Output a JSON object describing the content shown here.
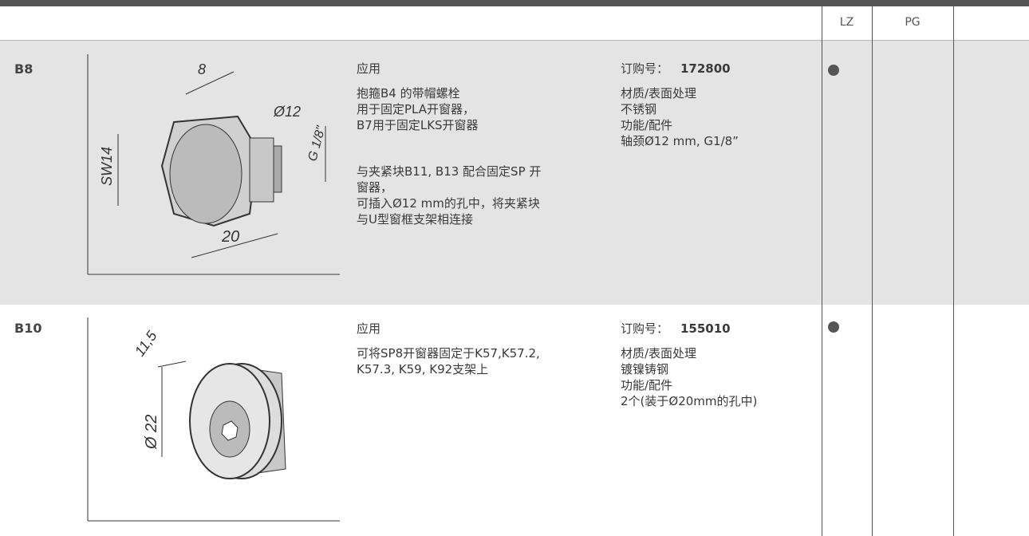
{
  "header": {
    "columns": [
      "LZ",
      "PG"
    ]
  },
  "rows": [
    {
      "code": "B8",
      "lz_available": true,
      "figure_labels": [
        "8",
        "Ø12",
        "SW14",
        "G 1/8\"",
        "20"
      ],
      "application_title": "应用",
      "application": [
        [
          "抱箍B4 的带帽螺栓",
          "用于固定PLA开窗器，",
          "B7用于固定LKS开窗器"
        ],
        [
          "与夹紧块B11, B13 配合固定SP 开",
          "窗器，",
          "可插入Ø12 mm的孔中，将夹紧块",
          "与U型窗框支架相连接"
        ]
      ],
      "order_label": "订购号：",
      "order_number": "172800",
      "material_title": "材质/表面处理",
      "material": "不锈钢",
      "function_title": "功能/配件",
      "function": "轴颈Ø12 mm, G1/8”"
    },
    {
      "code": "B10",
      "lz_available": true,
      "figure_labels": [
        "11,5",
        "Ø 22"
      ],
      "application_title": "应用",
      "application": [
        [
          "可将SP8开窗器固定于K57,K57.2,",
          "K57.3, K59, K92支架上"
        ]
      ],
      "order_label": "订购号：",
      "order_number": "155010",
      "material_title": "材质/表面处理",
      "material": "镀镍铸钢",
      "function_title": "功能/配件",
      "function": "2个(装于Ø20mm的孔中)"
    }
  ]
}
